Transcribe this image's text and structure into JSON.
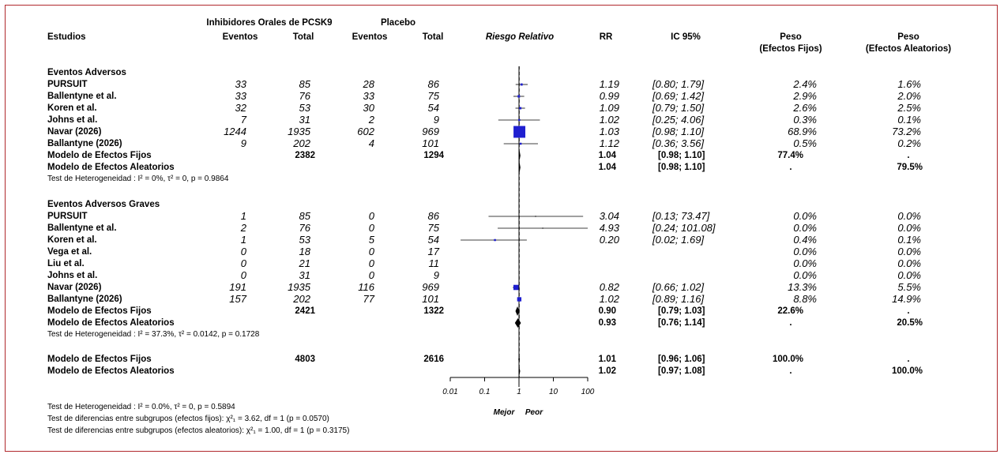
{
  "header": {
    "group1": "Inhibidores Orales de PCSK9",
    "group2": "Placebo",
    "studies": "Estudios",
    "events1": "Eventos",
    "total1": "Total",
    "events2": "Eventos",
    "total2": "Total",
    "plot": "Riesgo Relativo",
    "rr": "RR",
    "ci": "IC 95%",
    "wfixed1": "Peso",
    "wfixed2": "(Efectos Fijos)",
    "wrand1": "Peso",
    "wrand2": "(Efectos Aleatorios)"
  },
  "chart_data": {
    "type": "forest",
    "xscale": "log",
    "xticks": [
      "0.01",
      "0.1",
      "1",
      "10",
      "100"
    ],
    "xlim": [
      0.01,
      100
    ],
    "xlabel_left": "Mejor",
    "xlabel_right": "Peor",
    "groups": [
      {
        "title": "Eventos Adversos",
        "studies": [
          {
            "name": "PURSUIT",
            "e1": "33",
            "n1": "85",
            "e2": "28",
            "n2": "86",
            "rr": 1.19,
            "lo": 0.8,
            "hi": 1.79,
            "rr_text": "1.19",
            "ci_text": "[0.80;  1.79]",
            "wf": "2.4%",
            "wr": "1.6%",
            "wf_val": 2.4
          },
          {
            "name": "Ballentyne et al.",
            "e1": "33",
            "n1": "76",
            "e2": "33",
            "n2": "75",
            "rr": 0.99,
            "lo": 0.69,
            "hi": 1.42,
            "rr_text": "0.99",
            "ci_text": "[0.69;  1.42]",
            "wf": "2.9%",
            "wr": "2.0%",
            "wf_val": 2.9
          },
          {
            "name": "Koren et al.",
            "e1": "32",
            "n1": "53",
            "e2": "30",
            "n2": "54",
            "rr": 1.09,
            "lo": 0.79,
            "hi": 1.5,
            "rr_text": "1.09",
            "ci_text": "[0.79;  1.50]",
            "wf": "2.6%",
            "wr": "2.5%",
            "wf_val": 2.6
          },
          {
            "name": "Johns et al.",
            "e1": "7",
            "n1": "31",
            "e2": "2",
            "n2": "9",
            "rr": 1.02,
            "lo": 0.25,
            "hi": 4.06,
            "rr_text": "1.02",
            "ci_text": "[0.25;  4.06]",
            "wf": "0.3%",
            "wr": "0.1%",
            "wf_val": 0.3
          },
          {
            "name": "Navar (2026)",
            "e1": "1244",
            "n1": "1935",
            "e2": "602",
            "n2": "969",
            "rr": 1.03,
            "lo": 0.98,
            "hi": 1.1,
            "rr_text": "1.03",
            "ci_text": "[0.98;  1.10]",
            "wf": "68.9%",
            "wr": "73.2%",
            "wf_val": 68.9
          },
          {
            "name": "Ballantyne (2026)",
            "e1": "9",
            "n1": "202",
            "e2": "4",
            "n2": "101",
            "rr": 1.12,
            "lo": 0.36,
            "hi": 3.56,
            "rr_text": "1.12",
            "ci_text": "[0.36;  3.56]",
            "wf": "0.5%",
            "wr": "0.2%",
            "wf_val": 0.5
          }
        ],
        "fixed": {
          "label": "Modelo de Efectos Fijos",
          "n1": "2382",
          "n2": "1294",
          "rr": 1.04,
          "lo": 0.98,
          "hi": 1.1,
          "rr_text": "1.04",
          "ci_text": "[0.98;  1.10]",
          "wf": "77.4%",
          "wr": "."
        },
        "random": {
          "label": "Modelo de Efectos Aleatorios",
          "rr": 1.04,
          "lo": 0.98,
          "hi": 1.1,
          "rr_text": "1.04",
          "ci_text": "[0.98;  1.10]",
          "wf": ".",
          "wr": "79.5%"
        },
        "het": "Test de Heterogeneidad : I² = 0%, τ² = 0, p = 0.9864"
      },
      {
        "title": "Eventos Adversos Graves",
        "studies": [
          {
            "name": "PURSUIT",
            "e1": "1",
            "n1": "85",
            "e2": "0",
            "n2": "86",
            "rr": 3.04,
            "lo": 0.13,
            "hi": 73.47,
            "rr_text": "3.04",
            "ci_text": "[0.13; 73.47]",
            "wf": "0.0%",
            "wr": "0.0%",
            "wf_val": 0.0
          },
          {
            "name": "Ballentyne et al.",
            "e1": "2",
            "n1": "76",
            "e2": "0",
            "n2": "75",
            "rr": 4.93,
            "lo": 0.24,
            "hi": 101.08,
            "rr_text": "4.93",
            "ci_text": "[0.24; 101.08]",
            "wf": "0.0%",
            "wr": "0.0%",
            "wf_val": 0.0
          },
          {
            "name": "Koren et al.",
            "e1": "1",
            "n1": "53",
            "e2": "5",
            "n2": "54",
            "rr": 0.2,
            "lo": 0.02,
            "hi": 1.69,
            "rr_text": "0.20",
            "ci_text": "[0.02;  1.69]",
            "wf": "0.4%",
            "wr": "0.1%",
            "wf_val": 0.4
          },
          {
            "name": "Vega et al.",
            "e1": "0",
            "n1": "18",
            "e2": "0",
            "n2": "17",
            "rr": null,
            "lo": null,
            "hi": null,
            "rr_text": "",
            "ci_text": "",
            "wf": "0.0%",
            "wr": "0.0%",
            "wf_val": 0.0
          },
          {
            "name": "Liu et al.",
            "e1": "0",
            "n1": "21",
            "e2": "0",
            "n2": "11",
            "rr": null,
            "lo": null,
            "hi": null,
            "rr_text": "",
            "ci_text": "",
            "wf": "0.0%",
            "wr": "0.0%",
            "wf_val": 0.0
          },
          {
            "name": "Johns et al.",
            "e1": "0",
            "n1": "31",
            "e2": "0",
            "n2": "9",
            "rr": null,
            "lo": null,
            "hi": null,
            "rr_text": "",
            "ci_text": "",
            "wf": "0.0%",
            "wr": "0.0%",
            "wf_val": 0.0
          },
          {
            "name": "Navar (2026)",
            "e1": "191",
            "n1": "1935",
            "e2": "116",
            "n2": "969",
            "rr": 0.82,
            "lo": 0.66,
            "hi": 1.02,
            "rr_text": "0.82",
            "ci_text": "[0.66;  1.02]",
            "wf": "13.3%",
            "wr": "5.5%",
            "wf_val": 13.3
          },
          {
            "name": "Ballantyne (2026)",
            "e1": "157",
            "n1": "202",
            "e2": "77",
            "n2": "101",
            "rr": 1.02,
            "lo": 0.89,
            "hi": 1.16,
            "rr_text": "1.02",
            "ci_text": "[0.89;  1.16]",
            "wf": "8.8%",
            "wr": "14.9%",
            "wf_val": 8.8
          }
        ],
        "fixed": {
          "label": "Modelo de Efectos Fijos",
          "n1": "2421",
          "n2": "1322",
          "rr": 0.9,
          "lo": 0.79,
          "hi": 1.03,
          "rr_text": "0.90",
          "ci_text": "[0.79;  1.03]",
          "wf": "22.6%",
          "wr": "."
        },
        "random": {
          "label": "Modelo de Efectos Aleatorios",
          "rr": 0.93,
          "lo": 0.76,
          "hi": 1.14,
          "rr_text": "0.93",
          "ci_text": "[0.76;  1.14]",
          "wf": ".",
          "wr": "20.5%"
        },
        "het": "Test de Heterogeneidad : I² = 37.3%, τ² = 0.0142, p = 0.1728"
      }
    ],
    "overall": {
      "fixed": {
        "label": "Modelo de Efectos Fijos",
        "n1": "4803",
        "n2": "2616",
        "rr": 1.01,
        "lo": 0.96,
        "hi": 1.06,
        "rr_text": "1.01",
        "ci_text": "[0.96;  1.06]",
        "wf": "100.0%",
        "wr": "."
      },
      "random": {
        "label": "Modelo de Efectos Aleatorios",
        "rr": 1.02,
        "lo": 0.97,
        "hi": 1.08,
        "rr_text": "1.02",
        "ci_text": "[0.97;  1.08]",
        "wf": ".",
        "wr": "100.0%"
      }
    },
    "footnotes": [
      "Test de Heterogeneidad : I² = 0.0%, τ² = 0, p = 0.5894",
      "Test de diferencias entre subgrupos (efectos fijos): χ²₁ = 3.62, df = 1 (p = 0.0570)",
      "Test de diferencias entre subgrupos (efectos aleatorios): χ²₁ = 1.00, df = 1 (p = 0.3175)"
    ],
    "colors": {
      "box": "#1f1fd0",
      "diamond": "#000000",
      "frame": "#b0282c"
    }
  }
}
